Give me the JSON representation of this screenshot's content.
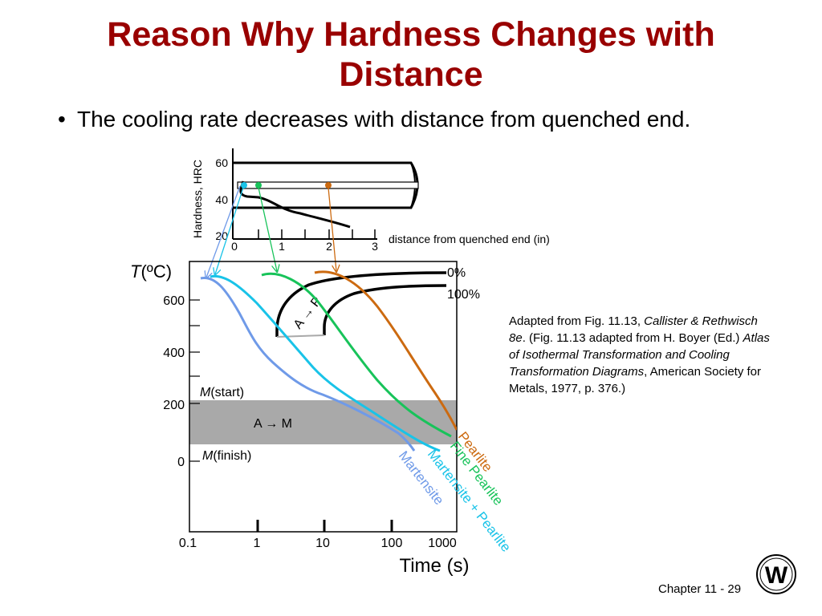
{
  "slide": {
    "title_line1": "Reason Why Hardness Changes with",
    "title_line2": "Distance",
    "bullet": "The cooling rate decreases with distance from quenched end.",
    "caption": {
      "part1": "Adapted from Fig. 11.13, ",
      "book": "Callister & Rethwisch 8e",
      "part2": ". (Fig. 11.13 adapted from H. Boyer (Ed.) ",
      "atlas": "Atlas of Isothermal Transformation and Cooling Transformation Diagrams",
      "part3": ", American Society for Metals, 1977, p. 376.)"
    },
    "footer": "Chapter 11 - 29",
    "logo_text": "W"
  },
  "hardness_plot": {
    "y_axis_label": "Hardness, HRC",
    "y_ticks": [
      "60",
      "40",
      "20"
    ],
    "x_ticks": [
      "0",
      "1",
      "2",
      "3"
    ],
    "x_axis_label": "distance from quenched end (in)"
  },
  "ttt_plot": {
    "y_axis_symbol": "T",
    "y_axis_unit": "(ºC)",
    "y_ticks": [
      "600",
      "400",
      "200",
      "0"
    ],
    "x_ticks": [
      "0.1",
      "1",
      "10",
      "100",
      "1000"
    ],
    "x_axis_label": "Time (s)",
    "start_label": "0%",
    "finish_label": "100%",
    "ap_label": "A → P",
    "m_start_label_italic": "M",
    "m_start_label_rest": "(start)",
    "m_finish_label_italic": "M",
    "m_finish_label_rest": "(finish)",
    "am_label": "A → M"
  },
  "curves": [
    {
      "key": "martensite",
      "label": "Martensite",
      "color": "#6f9ae8"
    },
    {
      "key": "martensite_pearlite",
      "label": "Martensite + Pearlite",
      "color": "#19c3e8"
    },
    {
      "key": "fine_pearlite",
      "label": "Fine Pearlite",
      "color": "#18c35a"
    },
    {
      "key": "pearlite",
      "label": "Pearlite",
      "color": "#cc6a10"
    }
  ],
  "colors": {
    "title": "#990000",
    "martensite_band": "#a9a9a9"
  }
}
